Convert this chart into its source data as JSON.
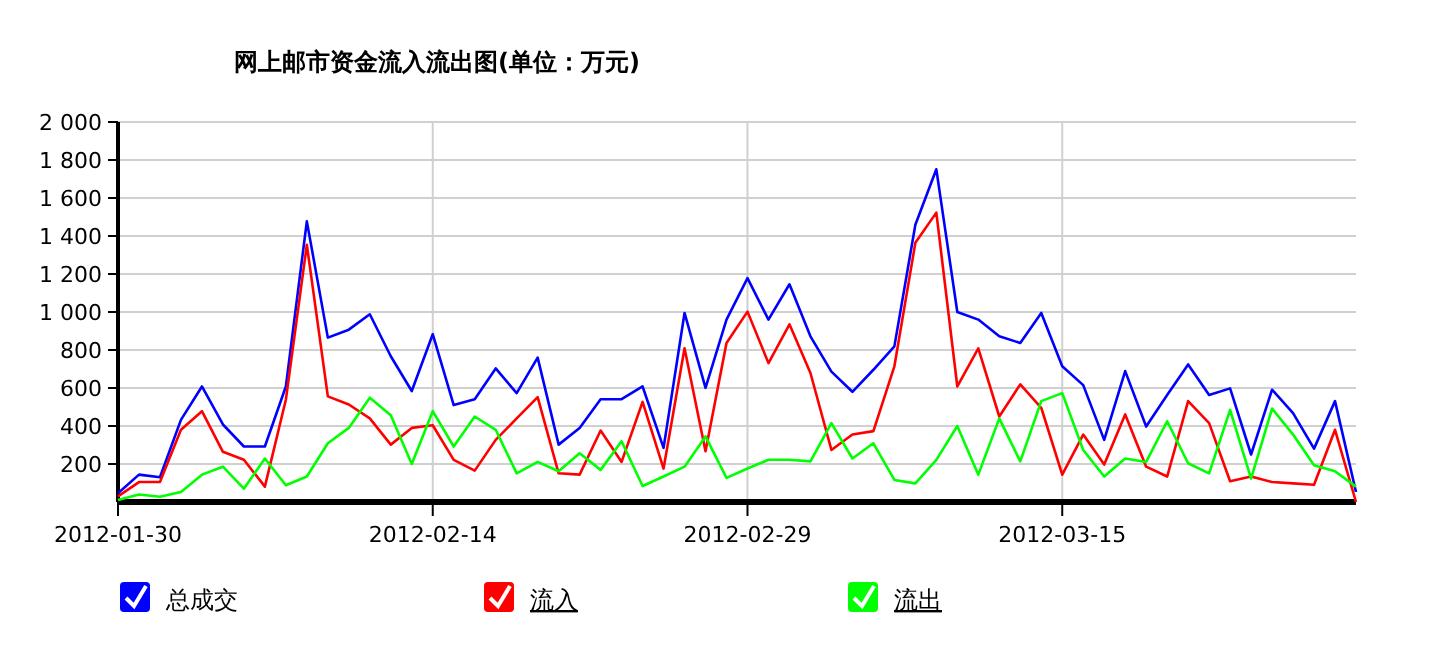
{
  "chart_data": {
    "type": "line",
    "title": "网上邮市资金流入流出图(单位：万元)",
    "x": [
      "2012-01-30",
      "2012-01-31",
      "2012-02-01",
      "2012-02-02",
      "2012-02-03",
      "2012-02-04",
      "2012-02-05",
      "2012-02-06",
      "2012-02-07",
      "2012-02-08",
      "2012-02-09",
      "2012-02-10",
      "2012-02-11",
      "2012-02-12",
      "2012-02-13",
      "2012-02-14",
      "2012-02-15",
      "2012-02-16",
      "2012-02-17",
      "2012-02-18",
      "2012-02-19",
      "2012-02-20",
      "2012-02-21",
      "2012-02-22",
      "2012-02-23",
      "2012-02-24",
      "2012-02-25",
      "2012-02-26",
      "2012-02-27",
      "2012-02-28",
      "2012-02-29",
      "2012-03-01",
      "2012-03-02",
      "2012-03-03",
      "2012-03-04",
      "2012-03-05",
      "2012-03-06",
      "2012-03-07",
      "2012-03-08",
      "2012-03-09",
      "2012-03-10",
      "2012-03-11",
      "2012-03-12",
      "2012-03-13",
      "2012-03-14",
      "2012-03-15",
      "2012-03-16",
      "2012-03-17",
      "2012-03-18",
      "2012-03-19",
      "2012-03-20",
      "2012-03-21",
      "2012-03-22",
      "2012-03-23",
      "2012-03-24",
      "2012-03-25",
      "2012-03-26",
      "2012-03-27",
      "2012-03-28",
      "2012-03-29"
    ],
    "series": [
      {
        "name": "总成交",
        "color": "#0000ff",
        "values": [
          46,
          144,
          130,
          432,
          608,
          408,
          292,
          292,
          608,
          1477,
          865,
          907,
          988,
          767,
          584,
          883,
          510,
          541,
          703,
          573,
          760,
          302,
          390,
          541,
          541,
          608,
          285,
          995,
          601,
          960,
          1178,
          960,
          1146,
          872,
          686,
          580,
          696,
          819,
          1459,
          1751,
          1000,
          960,
          872,
          837,
          995,
          714,
          615,
          327,
          689,
          397,
          563,
          724,
          563,
          598,
          250,
          591,
          468,
          281,
          531,
          53
        ]
      },
      {
        "name": "流入",
        "color": "#ff0000",
        "values": [
          30,
          105,
          105,
          380,
          478,
          264,
          222,
          81,
          538,
          1354,
          556,
          513,
          440,
          302,
          390,
          404,
          222,
          165,
          327,
          440,
          552,
          151,
          144,
          376,
          211,
          527,
          176,
          809,
          267,
          837,
          1002,
          731,
          935,
          679,
          274,
          355,
          373,
          714,
          1364,
          1523,
          608,
          809,
          450,
          619,
          496,
          144,
          355,
          197,
          461,
          186,
          134,
          531,
          415,
          109,
          134,
          105,
          98,
          91,
          380,
          0
        ]
      },
      {
        "name": "流出",
        "color": "#00ff00",
        "values": [
          10,
          39,
          28,
          53,
          144,
          186,
          70,
          229,
          88,
          134,
          309,
          390,
          549,
          457,
          200,
          478,
          292,
          450,
          380,
          151,
          211,
          162,
          257,
          169,
          320,
          84,
          134,
          186,
          345,
          127,
          176,
          222,
          222,
          214,
          415,
          229,
          309,
          116,
          98,
          222,
          400,
          144,
          440,
          214,
          531,
          573,
          274,
          134,
          229,
          211,
          425,
          204,
          151,
          485,
          123,
          492,
          355,
          193,
          162,
          81
        ]
      }
    ],
    "xlim": [
      "2012-01-30",
      "2012-03-29"
    ],
    "xticks": [
      {
        "value": "2012-01-30",
        "label": "2012-01-30"
      },
      {
        "value": "2012-02-14",
        "label": "2012-02-14"
      },
      {
        "value": "2012-02-29",
        "label": "2012-02-29"
      },
      {
        "value": "2012-03-15",
        "label": "2012-03-15"
      }
    ],
    "ylim": [
      0,
      2000
    ],
    "yticks": [
      200,
      400,
      600,
      800,
      {
        "value": 1000,
        "label": "1 000"
      },
      {
        "value": 1200,
        "label": "1 200"
      },
      {
        "value": 1400,
        "label": "1 400"
      },
      {
        "value": 1600,
        "label": "1 600"
      },
      {
        "value": 1800,
        "label": "1 800"
      },
      {
        "value": 2000,
        "label": "2 000"
      }
    ],
    "grid": true,
    "legend": "bottom",
    "marker": "none",
    "line_style": "solid"
  }
}
